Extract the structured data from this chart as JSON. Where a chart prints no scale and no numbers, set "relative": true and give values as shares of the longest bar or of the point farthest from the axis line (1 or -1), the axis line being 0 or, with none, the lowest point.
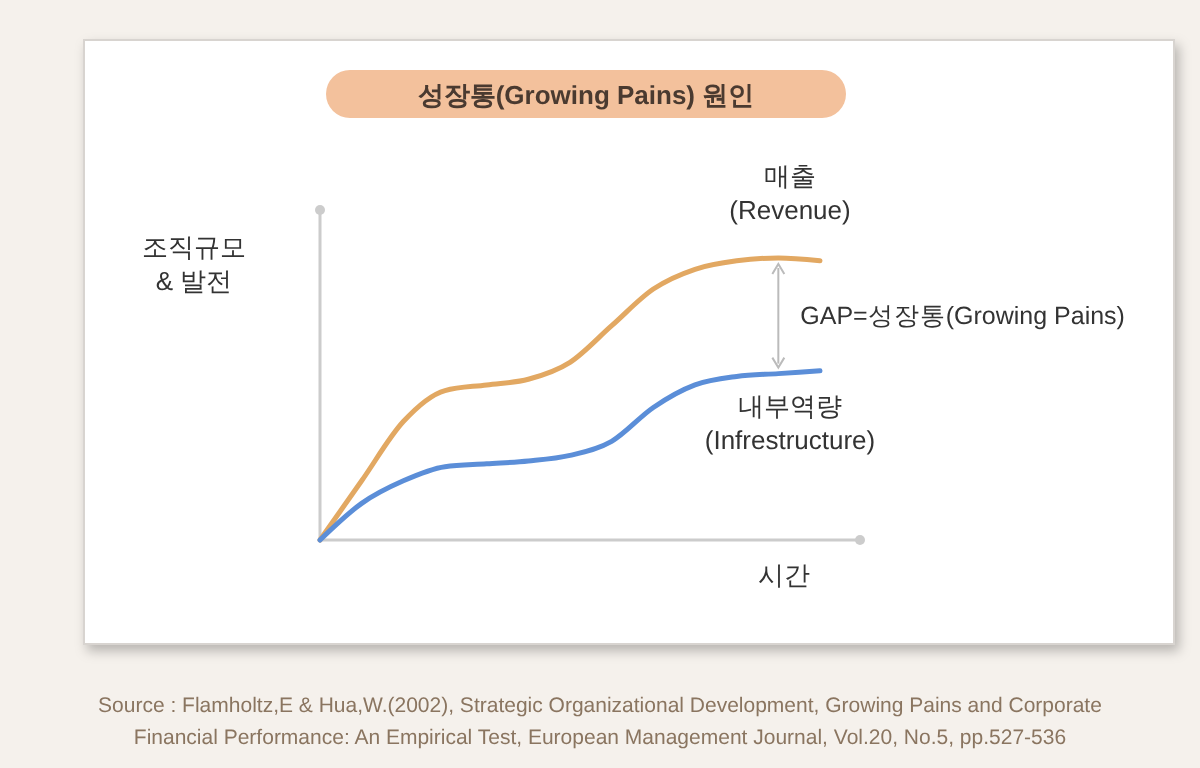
{
  "chart_data": {
    "type": "line",
    "relative": true,
    "title": "성장통(Growing Pains) 원인",
    "xlabel": "시간",
    "ylabel": "조직규모 & 발전",
    "categories": [
      null,
      null,
      null,
      null,
      null,
      null,
      null,
      null,
      null,
      null,
      null,
      null,
      null
    ],
    "series": [
      {
        "name": "매출 (Revenue)",
        "color": "#e2a862",
        "values": [
          0,
          0.21,
          0.42,
          0.53,
          0.55,
          0.57,
          0.63,
          0.76,
          0.89,
          0.96,
          0.99,
          1.0,
          0.99
        ]
      },
      {
        "name": "내부역량 (Infrestructure)",
        "color": "#5b8ed8",
        "values": [
          0,
          0.13,
          0.21,
          0.26,
          0.27,
          0.28,
          0.3,
          0.35,
          0.47,
          0.55,
          0.58,
          0.59,
          0.6
        ]
      }
    ],
    "annotations": [
      "GAP=성장통(Growing Pains)",
      "Source : Flamholtz,E & Hua,W.(2002), Strategic Organizational Development, Growing Pains and Corporate Financial Performance: An Empirical Test, European Management Journal, Vol.20, No.5, pp.527-536"
    ],
    "line_style": "solid"
  }
}
